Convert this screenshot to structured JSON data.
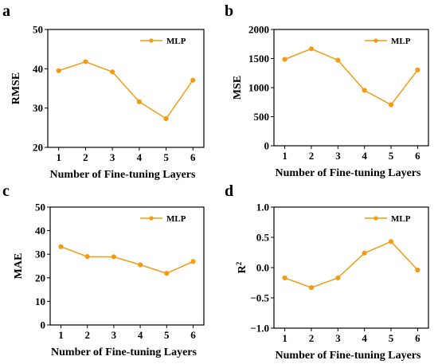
{
  "colors": {
    "series": "#f39c12"
  },
  "chart_data": [
    {
      "panel": "a",
      "type": "line",
      "x": [
        1,
        2,
        3,
        4,
        5,
        6
      ],
      "xticks": [
        "1",
        "2",
        "3",
        "4",
        "5",
        "6"
      ],
      "series": [
        {
          "name": "MLP",
          "values": [
            39.5,
            41.8,
            39.2,
            31.6,
            27.3,
            37.1
          ]
        }
      ],
      "xlabel": "Number of  Fine-tuning Layers",
      "ylabel": "RMSE",
      "ylim": [
        20,
        50
      ],
      "yticks": [
        "20",
        "30",
        "40",
        "50"
      ],
      "legend": "top-right",
      "grid": false
    },
    {
      "panel": "b",
      "type": "line",
      "x": [
        1,
        2,
        3,
        4,
        5,
        6
      ],
      "xticks": [
        "1",
        "2",
        "3",
        "4",
        "5",
        "6"
      ],
      "series": [
        {
          "name": "MLP",
          "values": [
            1560,
            1750,
            1545,
            1000,
            740,
            1370
          ]
        }
      ],
      "xlabel": "Number of  Fine-tuning Layers",
      "ylabel": "MSE",
      "ylim": [
        0,
        2100
      ],
      "yticks": [
        "0",
        "500",
        "1000",
        "1500",
        "2000"
      ],
      "legend": "top-right",
      "grid": false
    },
    {
      "panel": "c",
      "type": "line",
      "x": [
        1,
        2,
        3,
        4,
        5,
        6
      ],
      "xticks": [
        "1",
        "2",
        "3",
        "4",
        "5",
        "6"
      ],
      "series": [
        {
          "name": "MLP",
          "values": [
            33.2,
            29.0,
            28.9,
            25.5,
            21.9,
            26.9
          ]
        }
      ],
      "xlabel": "Number of  Fine-tuning Layers",
      "ylabel": "MAE",
      "ylim": [
        0,
        50
      ],
      "yticks": [
        "0",
        "10",
        "20",
        "30",
        "40",
        "50"
      ],
      "legend": "top-right",
      "grid": false
    },
    {
      "panel": "d",
      "type": "line",
      "x": [
        1,
        2,
        3,
        4,
        5,
        6
      ],
      "xticks": [
        "1",
        "2",
        "3",
        "4",
        "5",
        "6"
      ],
      "series": [
        {
          "name": "MLP",
          "values": [
            -0.17,
            -0.33,
            -0.17,
            0.24,
            0.43,
            -0.04
          ]
        }
      ],
      "xlabel": "Number of  Fine-tuning Layers",
      "ylabel": "R2",
      "ylim": [
        -1.0,
        1.0
      ],
      "yticks": [
        "−1.0",
        "−0.5",
        "0.0",
        "0.5",
        "1.0"
      ],
      "legend": "top-right",
      "grid": false
    }
  ]
}
